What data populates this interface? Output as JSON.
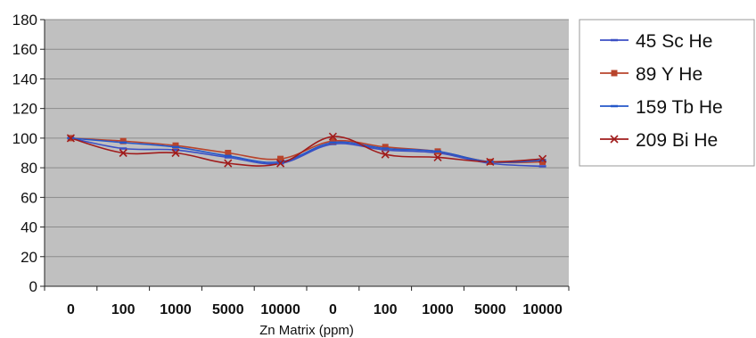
{
  "chart_data": {
    "type": "line",
    "categories": [
      "0",
      "100",
      "1000",
      "5000",
      "10000",
      "0",
      "100",
      "1000",
      "5000",
      "10000"
    ],
    "series": [
      {
        "name": "45 Sc He",
        "values": [
          100,
          93,
          92,
          87,
          83,
          96,
          92,
          90,
          83,
          81
        ],
        "color": "#3b4fc4",
        "marker": "dash"
      },
      {
        "name": "89 Y He",
        "values": [
          100,
          98,
          95,
          90,
          86,
          98,
          94,
          91,
          84,
          84
        ],
        "color": "#b8442c",
        "marker": "square"
      },
      {
        "name": "159 Tb He",
        "values": [
          100,
          97,
          94,
          88,
          84,
          97,
          93,
          91,
          84,
          85
        ],
        "color": "#2457c9",
        "marker": "dash"
      },
      {
        "name": "209 Bi He",
        "values": [
          100,
          90,
          90,
          83,
          83,
          101,
          89,
          87,
          84,
          86
        ],
        "color": "#a01c1c",
        "marker": "x"
      }
    ],
    "xlabel": "Zn Matrix (ppm)",
    "ylabel": "",
    "title": "",
    "ylim": [
      0,
      180
    ],
    "yticks": [
      "0",
      "20",
      "40",
      "60",
      "80",
      "100",
      "120",
      "140",
      "160",
      "180"
    ],
    "grid": true,
    "legend_position": "right",
    "plot_background": "#c0c0c0",
    "grid_color": "#8c8c8c"
  }
}
